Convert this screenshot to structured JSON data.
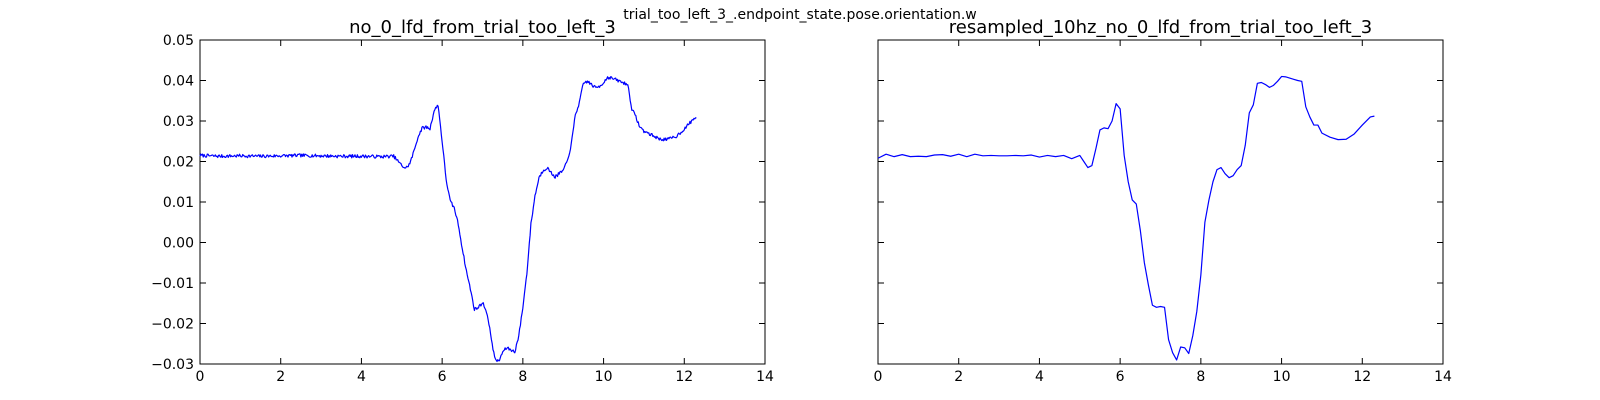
{
  "figure_title": "trial_too_left_3_.endpoint_state.pose.orientation.w",
  "chart_data": [
    {
      "type": "line",
      "title": "no_0_lfd_from_trial_too_left_3",
      "xlabel": "",
      "ylabel": "",
      "xlim": [
        0,
        14
      ],
      "ylim": [
        -0.03,
        0.05
      ],
      "xticks": [
        "0",
        "2",
        "4",
        "6",
        "8",
        "10",
        "12",
        "14"
      ],
      "yticks": [
        "−0.03",
        "−0.02",
        "−0.01",
        "0.00",
        "0.01",
        "0.02",
        "0.03",
        "0.04",
        "0.05"
      ],
      "grid": false,
      "color": "#0000ff",
      "noisy": true,
      "series": [
        {
          "x": [
            0,
            0.5,
            1.0,
            1.5,
            2.0,
            2.5,
            3.0,
            3.5,
            4.0,
            4.5,
            4.8,
            5.0,
            5.1,
            5.2,
            5.3,
            5.4,
            5.5,
            5.6,
            5.7,
            5.8,
            5.9,
            6.0,
            6.1,
            6.2,
            6.3,
            6.4,
            6.5,
            6.6,
            6.7,
            6.8,
            6.9,
            7.0,
            7.1,
            7.2,
            7.3,
            7.4,
            7.5,
            7.6,
            7.7,
            7.8,
            7.9,
            8.0,
            8.1,
            8.2,
            8.3,
            8.4,
            8.5,
            8.6,
            8.7,
            8.8,
            8.9,
            9.0,
            9.1,
            9.2,
            9.3,
            9.4,
            9.5,
            9.6,
            9.7,
            9.8,
            9.9,
            10.0,
            10.1,
            10.2,
            10.3,
            10.4,
            10.5,
            10.6,
            10.7,
            10.8,
            10.9,
            11.0,
            11.2,
            11.4,
            11.6,
            11.8,
            12.0,
            12.2,
            12.3
          ],
          "y": [
            0.0215,
            0.0213,
            0.0214,
            0.0213,
            0.0214,
            0.0215,
            0.0214,
            0.0213,
            0.0213,
            0.0212,
            0.0213,
            0.019,
            0.0183,
            0.0195,
            0.0225,
            0.026,
            0.0282,
            0.0285,
            0.0281,
            0.0325,
            0.034,
            0.025,
            0.0155,
            0.0102,
            0.0085,
            0.0045,
            -0.0015,
            -0.007,
            -0.0115,
            -0.0165,
            -0.016,
            -0.0148,
            -0.017,
            -0.0225,
            -0.0285,
            -0.0295,
            -0.027,
            -0.026,
            -0.0265,
            -0.027,
            -0.023,
            -0.016,
            -0.0075,
            0.0045,
            0.0115,
            0.016,
            0.0178,
            0.0185,
            0.0172,
            0.0162,
            0.017,
            0.0178,
            0.02,
            0.0242,
            0.0315,
            0.0345,
            0.0393,
            0.0398,
            0.039,
            0.0382,
            0.0386,
            0.0395,
            0.0408,
            0.0406,
            0.0402,
            0.0398,
            0.0394,
            0.039,
            0.033,
            0.031,
            0.0285,
            0.0275,
            0.0265,
            0.0255,
            0.0255,
            0.0262,
            0.028,
            0.0302,
            0.031
          ]
        }
      ]
    },
    {
      "type": "line",
      "title": "resampled_10hz_no_0_lfd_from_trial_too_left_3",
      "xlabel": "",
      "ylabel": "",
      "xlim": [
        0,
        14
      ],
      "ylim": [
        -0.03,
        0.05
      ],
      "xticks": [
        "0",
        "2",
        "4",
        "6",
        "8",
        "10",
        "12",
        "14"
      ],
      "yticks": [],
      "grid": false,
      "color": "#0000ff",
      "noisy": false,
      "series": [
        {
          "x": [
            0,
            0.2,
            0.4,
            0.6,
            0.8,
            1.0,
            1.2,
            1.4,
            1.6,
            1.8,
            2.0,
            2.2,
            2.4,
            2.6,
            2.8,
            3.0,
            3.2,
            3.4,
            3.6,
            3.8,
            4.0,
            4.2,
            4.4,
            4.6,
            4.8,
            5.0,
            5.1,
            5.2,
            5.3,
            5.4,
            5.5,
            5.6,
            5.7,
            5.8,
            5.9,
            6.0,
            6.1,
            6.2,
            6.3,
            6.4,
            6.5,
            6.6,
            6.7,
            6.8,
            6.9,
            7.0,
            7.1,
            7.2,
            7.3,
            7.4,
            7.5,
            7.6,
            7.7,
            7.8,
            7.9,
            8.0,
            8.1,
            8.2,
            8.3,
            8.4,
            8.5,
            8.6,
            8.7,
            8.8,
            8.9,
            9.0,
            9.1,
            9.2,
            9.3,
            9.4,
            9.5,
            9.6,
            9.7,
            9.8,
            9.9,
            10.0,
            10.1,
            10.2,
            10.3,
            10.4,
            10.5,
            10.6,
            10.7,
            10.8,
            10.9,
            11.0,
            11.2,
            11.4,
            11.6,
            11.8,
            12.0,
            12.2,
            12.3
          ],
          "y": [
            0.0208,
            0.0218,
            0.0212,
            0.0217,
            0.0212,
            0.0213,
            0.0212,
            0.0216,
            0.0217,
            0.0213,
            0.0218,
            0.0212,
            0.0218,
            0.0214,
            0.0215,
            0.0214,
            0.0214,
            0.0215,
            0.0214,
            0.0216,
            0.0211,
            0.0215,
            0.0212,
            0.0215,
            0.0207,
            0.0215,
            0.02,
            0.0185,
            0.019,
            0.0232,
            0.0278,
            0.0283,
            0.0281,
            0.03,
            0.0343,
            0.033,
            0.0215,
            0.015,
            0.0105,
            0.0095,
            0.003,
            -0.005,
            -0.0105,
            -0.0155,
            -0.016,
            -0.0158,
            -0.016,
            -0.024,
            -0.0272,
            -0.029,
            -0.0258,
            -0.026,
            -0.0274,
            -0.023,
            -0.017,
            -0.008,
            0.005,
            0.0105,
            0.015,
            0.018,
            0.0185,
            0.017,
            0.016,
            0.0165,
            0.018,
            0.019,
            0.024,
            0.032,
            0.034,
            0.0393,
            0.0395,
            0.039,
            0.0383,
            0.0388,
            0.0398,
            0.041,
            0.0409,
            0.0406,
            0.0403,
            0.04,
            0.0398,
            0.0335,
            0.031,
            0.029,
            0.029,
            0.027,
            0.026,
            0.0254,
            0.0255,
            0.0268,
            0.029,
            0.031,
            0.0312
          ]
        }
      ]
    }
  ]
}
